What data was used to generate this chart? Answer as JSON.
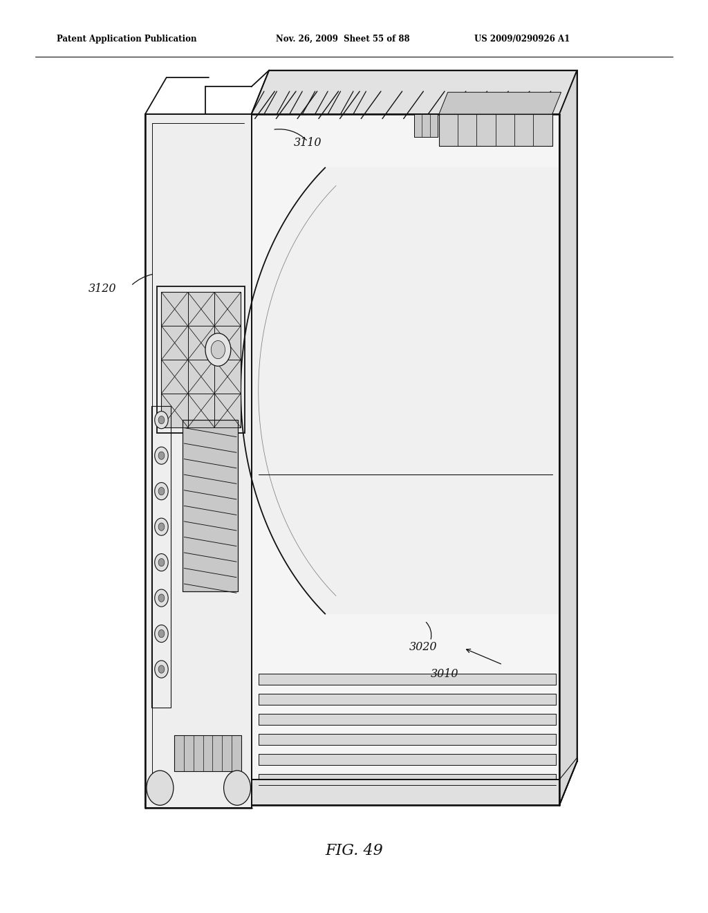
{
  "patent_header_left": "Patent Application Publication",
  "patent_header_mid": "Nov. 26, 2009  Sheet 55 of 88",
  "patent_header_right": "US 2009/0290926 A1",
  "background_color": "#ffffff",
  "line_color": "#111111",
  "fig_label": "FIG. 49"
}
